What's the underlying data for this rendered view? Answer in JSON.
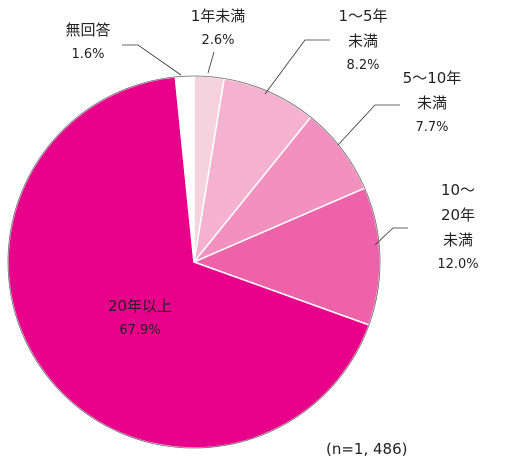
{
  "chart_data": {
    "type": "pie",
    "categories": [
      "1年未満",
      "1〜5年\n未満",
      "5〜10年\n未満",
      "10〜20年\n未満",
      "20年以上",
      "無回答"
    ],
    "values": [
      2.6,
      8.2,
      7.7,
      12.0,
      67.9,
      1.6
    ],
    "value_labels": [
      "2.6%",
      "8.2%",
      "7.7%",
      "12.0%",
      "67.9%",
      "1.6%"
    ],
    "colors": [
      "#f5d3de",
      "#f5b2d0",
      "#f290c0",
      "#ee62aa",
      "#e8008a",
      "#ffffff"
    ],
    "note": "(n=1, 486)"
  }
}
